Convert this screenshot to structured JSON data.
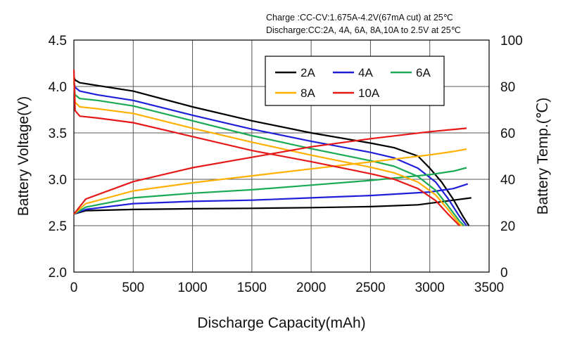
{
  "annotations": {
    "charge": "Charge :CC-CV:1.675A-4.2V(67mA cut) at 25℃",
    "discharge": "Discharge:CC:2A, 4A, 6A, 8A,10A to 2.5V at 25℃"
  },
  "chart_data": {
    "type": "line",
    "xlabel": "Discharge Capacity(mAh)",
    "ylabel": "Battery Voltage(V)",
    "y2label": "Battery Temp.(℃)",
    "xlim": [
      0,
      3500
    ],
    "ylim": [
      2.0,
      4.5
    ],
    "y2lim": [
      0,
      100
    ],
    "x_ticks": [
      "0",
      "500",
      "1000",
      "1500",
      "2000",
      "2500",
      "3000",
      "3500"
    ],
    "y_ticks": [
      "2.0",
      "2.5",
      "3.0",
      "3.5",
      "4.0",
      "4.5"
    ],
    "y2_ticks": [
      "0",
      "20",
      "40",
      "60",
      "80",
      "100"
    ],
    "grid": true,
    "legend_position": "top-right",
    "series": [
      {
        "name": "2A",
        "color": "#000000",
        "voltage": [
          [
            0,
            4.1
          ],
          [
            10,
            4.07
          ],
          [
            50,
            4.04
          ],
          [
            200,
            4.01
          ],
          [
            500,
            3.95
          ],
          [
            1000,
            3.78
          ],
          [
            1500,
            3.63
          ],
          [
            2000,
            3.5
          ],
          [
            2500,
            3.39
          ],
          [
            2700,
            3.34
          ],
          [
            2900,
            3.25
          ],
          [
            3000,
            3.12
          ],
          [
            3100,
            2.97
          ],
          [
            3200,
            2.78
          ],
          [
            3280,
            2.6
          ],
          [
            3330,
            2.5
          ]
        ],
        "temperature": [
          [
            0,
            25
          ],
          [
            100,
            26.5
          ],
          [
            500,
            27
          ],
          [
            1000,
            27.3
          ],
          [
            1500,
            27.5
          ],
          [
            2000,
            27.8
          ],
          [
            2500,
            28.2
          ],
          [
            2900,
            29
          ],
          [
            3200,
            31
          ],
          [
            3350,
            32
          ]
        ]
      },
      {
        "name": "4A",
        "color": "#1f1fd8",
        "voltage": [
          [
            0,
            4.05
          ],
          [
            10,
            3.99
          ],
          [
            50,
            3.95
          ],
          [
            200,
            3.91
          ],
          [
            500,
            3.85
          ],
          [
            1000,
            3.69
          ],
          [
            1500,
            3.54
          ],
          [
            2000,
            3.41
          ],
          [
            2500,
            3.29
          ],
          [
            2700,
            3.23
          ],
          [
            2900,
            3.12
          ],
          [
            3050,
            2.97
          ],
          [
            3150,
            2.8
          ],
          [
            3250,
            2.6
          ],
          [
            3310,
            2.5
          ]
        ],
        "temperature": [
          [
            0,
            25
          ],
          [
            100,
            27
          ],
          [
            500,
            29.5
          ],
          [
            1000,
            30.5
          ],
          [
            1500,
            31
          ],
          [
            2000,
            32
          ],
          [
            2500,
            33
          ],
          [
            3000,
            34.5
          ],
          [
            3200,
            36
          ],
          [
            3320,
            38
          ]
        ]
      },
      {
        "name": "6A",
        "color": "#1aaa55",
        "voltage": [
          [
            0,
            4.05
          ],
          [
            10,
            3.91
          ],
          [
            50,
            3.87
          ],
          [
            200,
            3.85
          ],
          [
            500,
            3.79
          ],
          [
            1000,
            3.63
          ],
          [
            1500,
            3.47
          ],
          [
            2000,
            3.33
          ],
          [
            2500,
            3.2
          ],
          [
            2700,
            3.14
          ],
          [
            2900,
            3.03
          ],
          [
            3050,
            2.88
          ],
          [
            3150,
            2.72
          ],
          [
            3250,
            2.55
          ],
          [
            3290,
            2.5
          ]
        ],
        "temperature": [
          [
            0,
            25
          ],
          [
            100,
            28
          ],
          [
            500,
            32
          ],
          [
            1000,
            34
          ],
          [
            1500,
            35.5
          ],
          [
            2000,
            37.5
          ],
          [
            2500,
            39.5
          ],
          [
            3000,
            42
          ],
          [
            3200,
            43.5
          ],
          [
            3310,
            45
          ]
        ]
      },
      {
        "name": "8A",
        "color": "#ffb000",
        "voltage": [
          [
            0,
            4.1
          ],
          [
            10,
            3.83
          ],
          [
            50,
            3.78
          ],
          [
            200,
            3.76
          ],
          [
            500,
            3.71
          ],
          [
            1000,
            3.55
          ],
          [
            1500,
            3.4
          ],
          [
            2000,
            3.26
          ],
          [
            2500,
            3.13
          ],
          [
            2700,
            3.07
          ],
          [
            2900,
            2.97
          ],
          [
            3050,
            2.83
          ],
          [
            3150,
            2.68
          ],
          [
            3250,
            2.52
          ],
          [
            3270,
            2.5
          ]
        ],
        "temperature": [
          [
            0,
            25
          ],
          [
            100,
            29.5
          ],
          [
            500,
            35
          ],
          [
            1000,
            38.5
          ],
          [
            1500,
            41.5
          ],
          [
            2000,
            44.5
          ],
          [
            2500,
            47.5
          ],
          [
            3000,
            50.5
          ],
          [
            3200,
            52
          ],
          [
            3310,
            53
          ]
        ]
      },
      {
        "name": "10A",
        "color": "#e61919",
        "voltage": [
          [
            0,
            4.18
          ],
          [
            10,
            3.74
          ],
          [
            50,
            3.68
          ],
          [
            200,
            3.66
          ],
          [
            500,
            3.61
          ],
          [
            1000,
            3.46
          ],
          [
            1500,
            3.31
          ],
          [
            2000,
            3.19
          ],
          [
            2500,
            3.06
          ],
          [
            2700,
            3.0
          ],
          [
            2900,
            2.9
          ],
          [
            3050,
            2.77
          ],
          [
            3150,
            2.63
          ],
          [
            3250,
            2.5
          ]
        ],
        "temperature": [
          [
            0,
            25
          ],
          [
            100,
            31.5
          ],
          [
            500,
            39
          ],
          [
            1000,
            45
          ],
          [
            1500,
            49.5
          ],
          [
            2000,
            54
          ],
          [
            2500,
            57.5
          ],
          [
            3000,
            60.5
          ],
          [
            3200,
            61.5
          ],
          [
            3310,
            62
          ]
        ]
      }
    ]
  }
}
